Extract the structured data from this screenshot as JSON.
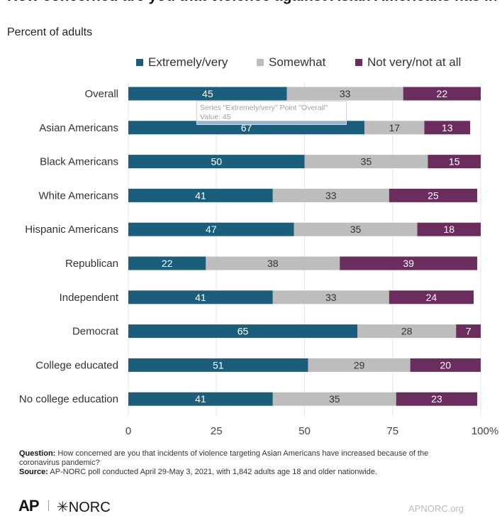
{
  "title": "How concerned are you that violence against Asian Americans has increased because of the pandemic?",
  "title_visible_fragment": "increased because of the pandemic?",
  "subtitle": "Percent of adults",
  "colors": {
    "extremely": "#1b5e7b",
    "somewhat": "#bdbdbd",
    "not_very": "#6b2d5e",
    "gridline": "#e6e6e6"
  },
  "tooltip": {
    "line1": "Series \"Extremely/very\" Point \"Overall\"",
    "line2": "Value: 45"
  },
  "chart_data": {
    "type": "bar",
    "orientation": "horizontal",
    "stacked": true,
    "categories": [
      "Overall",
      "Asian Americans",
      "Black Americans",
      "White Americans",
      "Hispanic Americans",
      "Republican",
      "Independent",
      "Democrat",
      "College educated",
      "No college education"
    ],
    "series": [
      {
        "name": "Extremely/very",
        "values": [
          45,
          67,
          50,
          41,
          47,
          22,
          41,
          65,
          51,
          41
        ]
      },
      {
        "name": "Somewhat",
        "values": [
          33,
          17,
          35,
          33,
          35,
          38,
          33,
          28,
          29,
          35
        ]
      },
      {
        "name": "Not very/not at all",
        "values": [
          22,
          13,
          15,
          25,
          18,
          39,
          24,
          7,
          20,
          23
        ]
      }
    ],
    "xlim": [
      0,
      100
    ],
    "xticks": [
      "0",
      "25",
      "50",
      "75",
      "100%"
    ],
    "grid": true,
    "legend_position": "top"
  },
  "notes": {
    "question_label": "Question:",
    "question_text": "How concerned are you that incidents of violence targeting Asian Americans have increased because of the coronavirus pandemic?",
    "source_label": "Source:",
    "source_text": "AP-NORC poll conducted April 29-May 3, 2021, with 1,842 adults age 18 and older nationwide."
  },
  "footer": {
    "ap_logo": "AP",
    "norc_logo": "✳NORC",
    "site": "APNORC.org"
  }
}
